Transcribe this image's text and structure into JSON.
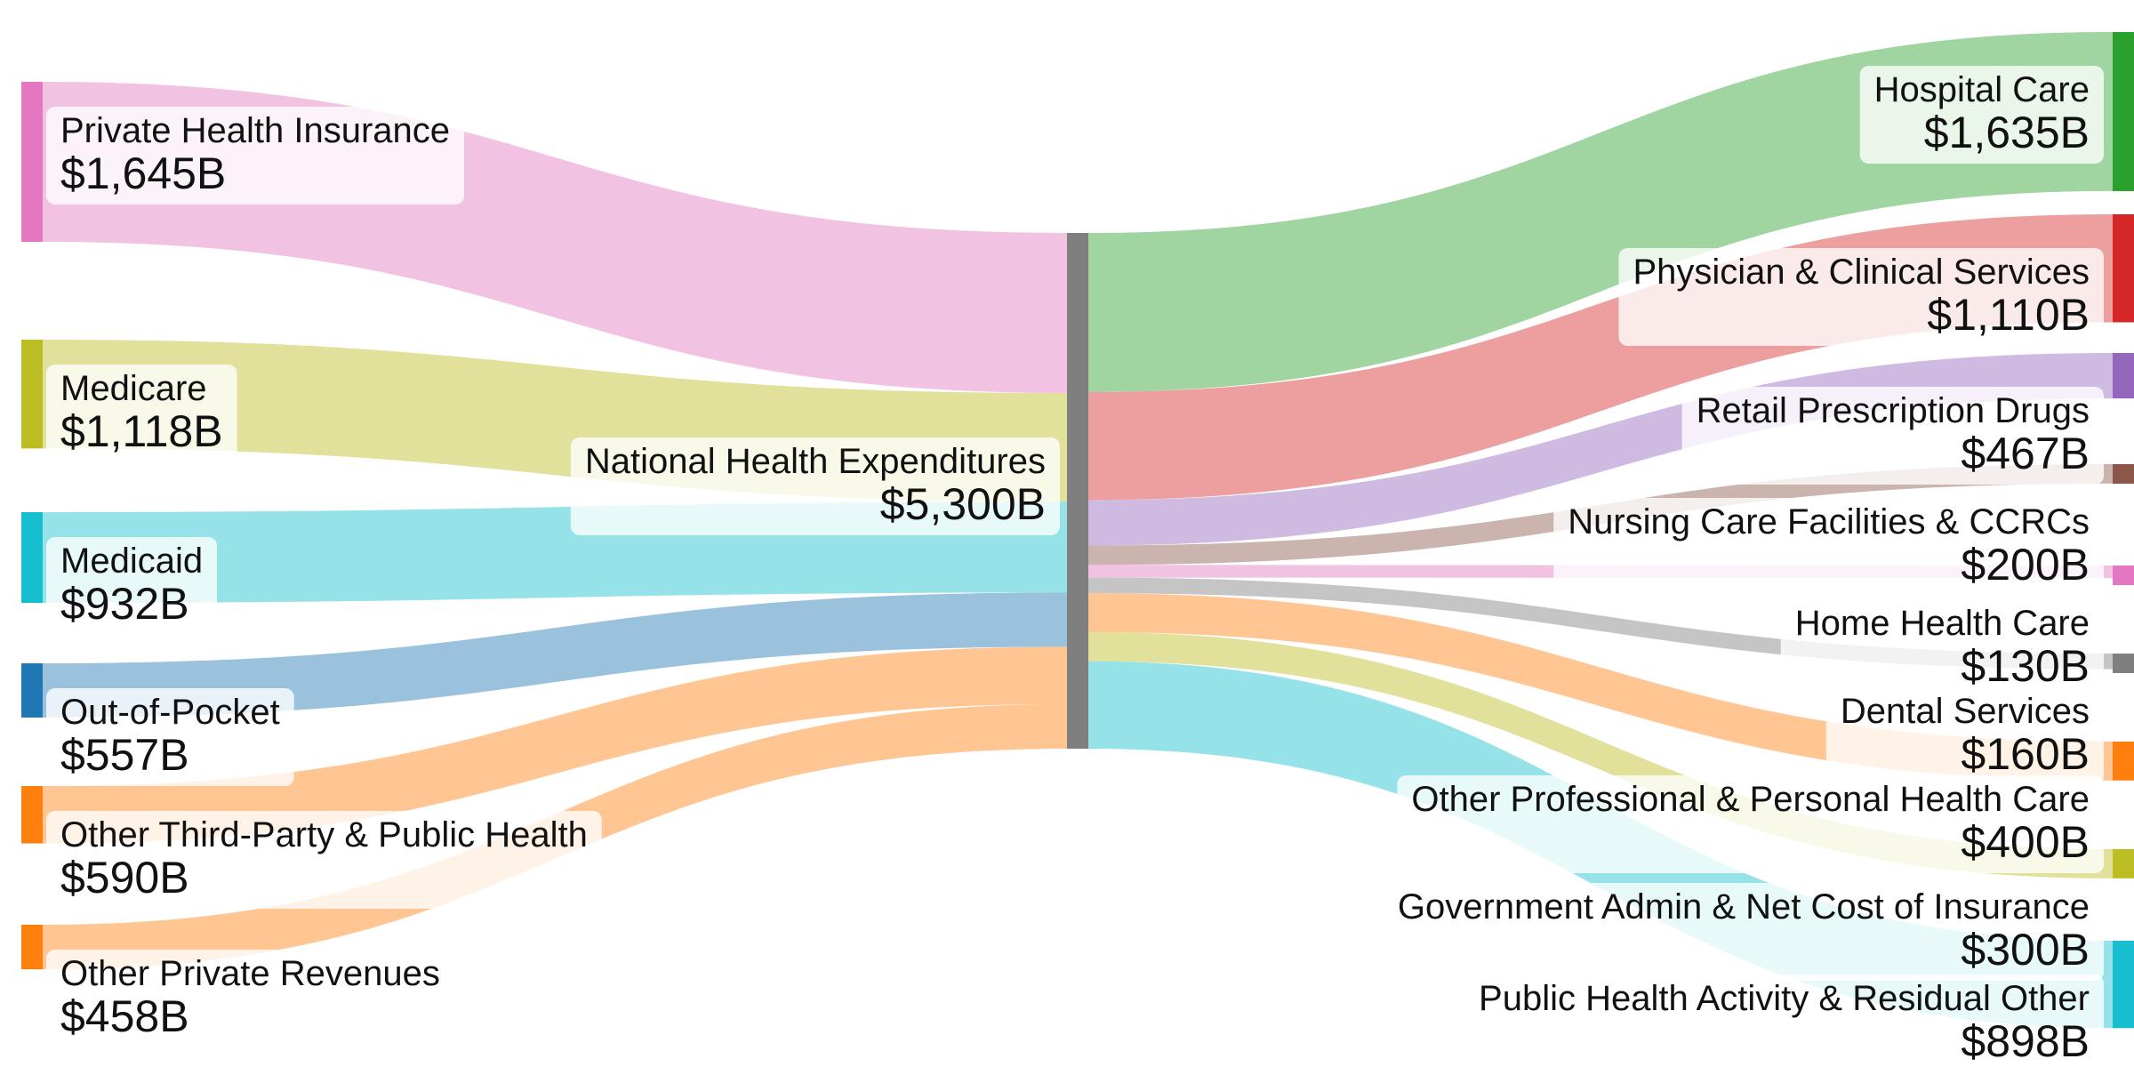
{
  "chart_data": {
    "type": "sankey",
    "unit_prefix": "$",
    "unit_suffix": "B",
    "center": {
      "name": "National Health Expenditures",
      "value": 5300,
      "color": "#7f7f7f"
    },
    "sources": [
      {
        "name": "Private Health Insurance",
        "value": 1645,
        "color": "#e377c2"
      },
      {
        "name": "Medicare",
        "value": 1118,
        "color": "#bcbd22"
      },
      {
        "name": "Medicaid",
        "value": 932,
        "color": "#17becf"
      },
      {
        "name": "Out-of-Pocket",
        "value": 557,
        "color": "#1f77b4"
      },
      {
        "name": "Other Third-Party & Public Health",
        "value": 590,
        "color": "#ff7f0e"
      },
      {
        "name": "Other Private Revenues",
        "value": 458,
        "color": "#ff7f0e"
      }
    ],
    "targets": [
      {
        "name": "Hospital Care",
        "value": 1635,
        "color": "#2ca02c"
      },
      {
        "name": "Physician & Clinical Services",
        "value": 1110,
        "color": "#d62728"
      },
      {
        "name": "Retail Prescription Drugs",
        "value": 467,
        "color": "#9467bd"
      },
      {
        "name": "Nursing Care Facilities & CCRCs",
        "value": 200,
        "color": "#8c564b"
      },
      {
        "name": "Home Health Care",
        "value": 130,
        "color": "#e377c2"
      },
      {
        "name": "Dental Services",
        "value": 160,
        "color": "#7f7f7f"
      },
      {
        "name": "Other Professional & Personal Health Care",
        "value": 400,
        "color": "#ff7f0e"
      },
      {
        "name": "Government Admin & Net Cost of Insurance",
        "value": 300,
        "color": "#bcbd22"
      },
      {
        "name": "Public Health Activity & Residual Other",
        "value": 898,
        "color": "#17becf"
      }
    ]
  }
}
